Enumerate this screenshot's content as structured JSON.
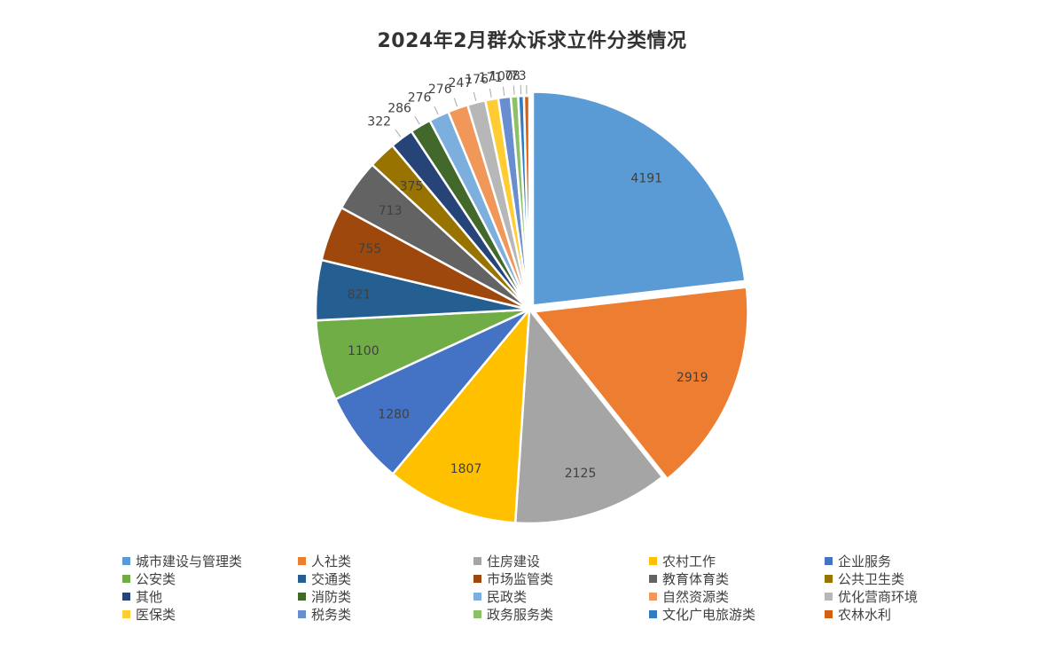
{
  "chart_data": {
    "type": "pie",
    "title": "2024年2月群众诉求立件分类情况",
    "categories": [
      "城市建设与管理类",
      "人社类",
      "住房建设",
      "农村工作",
      "企业服务",
      "公安类",
      "交通类",
      "市场监管类",
      "教育体育类",
      "公共卫生类",
      "其他",
      "消防类",
      "民政类",
      "自然资源类",
      "优化营商环境",
      "医保类",
      "税务类",
      "政务服务类",
      "文化广电旅游类",
      "农林水利"
    ],
    "values": [
      4191,
      2919,
      2125,
      1807,
      1280,
      1100,
      821,
      755,
      713,
      375,
      322,
      286,
      276,
      276,
      247,
      176,
      171,
      100,
      78,
      73
    ],
    "labels": [
      "4191",
      "2919",
      "2125",
      "1807",
      "1280",
      "1100",
      "821",
      "755",
      "713",
      "375",
      "322",
      "286",
      "276",
      "276",
      "247",
      "176",
      "171",
      "100",
      "78",
      "73"
    ],
    "colors": [
      "#5B9BD5",
      "#ED7D31",
      "#A5A5A5",
      "#FFC000",
      "#4472C4",
      "#70AD47",
      "#255E91",
      "#9E480E",
      "#636363",
      "#997300",
      "#264478",
      "#43682B",
      "#7CAFDD",
      "#F1975A",
      "#B7B7B7",
      "#FFCD33",
      "#698ED0",
      "#8CC168",
      "#327DC2",
      "#D26012"
    ],
    "legend_position": "bottom"
  }
}
